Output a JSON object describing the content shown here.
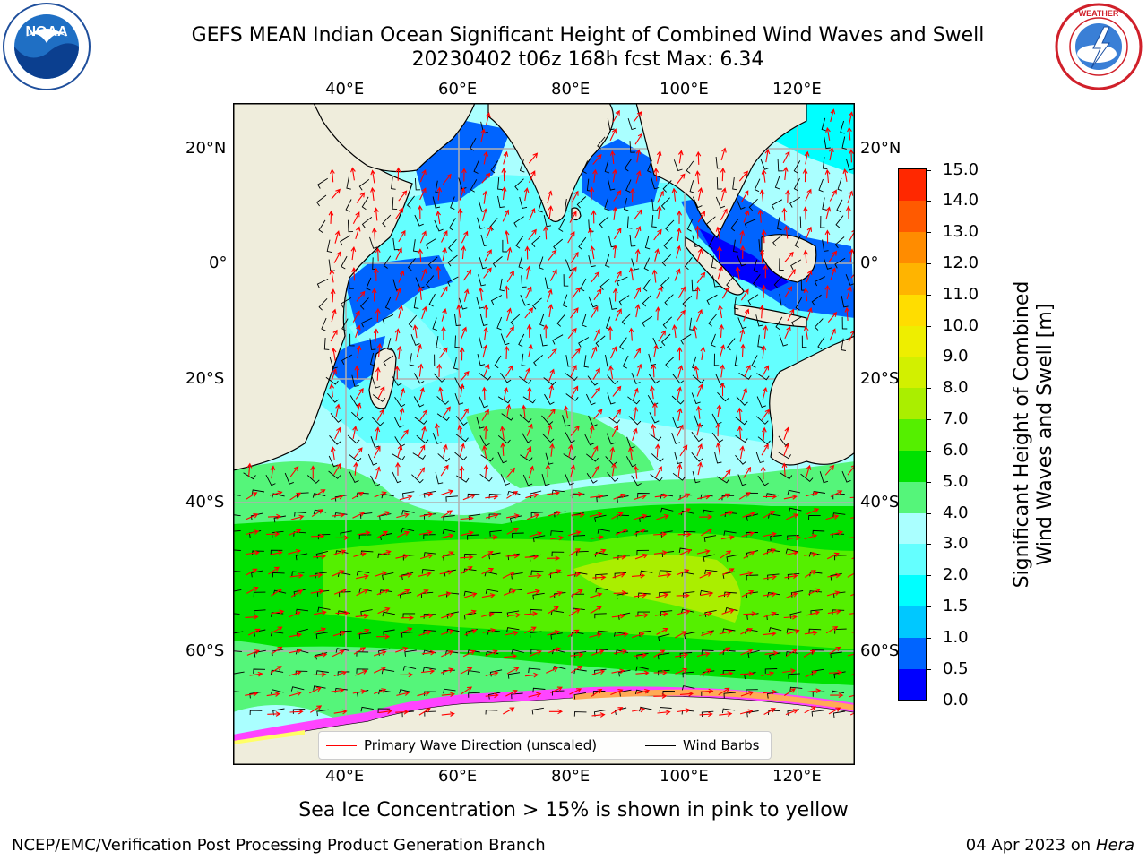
{
  "title": {
    "line1": "GEFS MEAN Indian Ocean Significant Height of Combined Wind Waves and Swell",
    "line2": "20230402 t06z 168h fcst   Max: 6.34"
  },
  "logos": {
    "left": {
      "icon": "noaa-logo",
      "text": "NOAA"
    },
    "right": {
      "icon": "national-weather-service-logo",
      "text": "NATIONAL WEATHER SERVICE"
    }
  },
  "axes": {
    "longitude_ticks": [
      "40°E",
      "60°E",
      "80°E",
      "100°E",
      "120°E"
    ],
    "latitude_ticks": [
      "20°N",
      "0°",
      "20°S",
      "40°S",
      "60°S"
    ]
  },
  "legend": {
    "primary_wave": "Primary Wave Direction (unscaled)",
    "wind_barbs": "Wind Barbs",
    "primary_wave_color": "#ff0000",
    "wind_barbs_color": "#000000"
  },
  "colorbar": {
    "title_line1": "Significant Height of Combined",
    "title_line2": "Wind Waves and Swell [m]",
    "levels": [
      "0.0",
      "0.5",
      "1.0",
      "1.5",
      "2.0",
      "3.0",
      "4.0",
      "5.0",
      "6.0",
      "7.0",
      "8.0",
      "9.0",
      "10.0",
      "11.0",
      "12.0",
      "13.0",
      "14.0",
      "15.0"
    ],
    "colors": [
      "#0000ff",
      "#0064ff",
      "#00c8ff",
      "#00ffff",
      "#64ffff",
      "#aaffff",
      "#55f57a",
      "#00e100",
      "#55ef00",
      "#aaee00",
      "#d2f000",
      "#eeee00",
      "#ffdd00",
      "#ffb400",
      "#ff8c00",
      "#ff5a00",
      "#ff2800"
    ]
  },
  "map": {
    "land_color": "#efeddc",
    "ice_colors": [
      "#ff44ff",
      "#ffaa55",
      "#ffff66"
    ]
  },
  "caption": "Sea Ice Concentration > 15% is shown in pink to yellow",
  "footer": {
    "left": "NCEP/EMC/Verification Post Processing Product Generation Branch",
    "right_date": "04 Apr 2023 on",
    "right_host": "Hera"
  }
}
